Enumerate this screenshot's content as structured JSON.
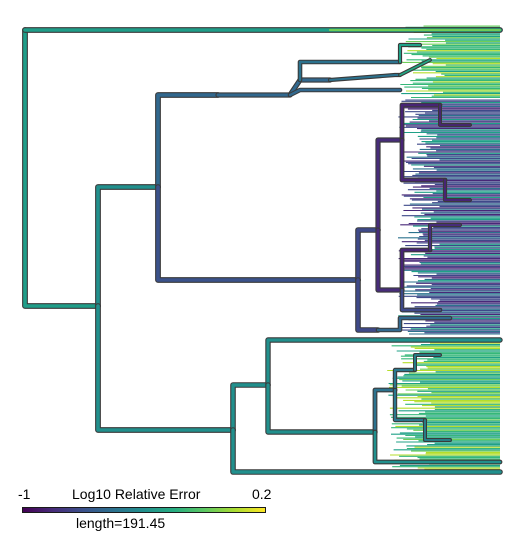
{
  "legend": {
    "min_label": "-1",
    "title": "Log10 Relative Error",
    "max_label": "0.2",
    "min_value": -1,
    "max_value": 0.2,
    "colormap": [
      "#440154",
      "#472c7a",
      "#3b518b",
      "#2c718e",
      "#21908d",
      "#27ad81",
      "#5cc863",
      "#aadc32",
      "#fde725"
    ]
  },
  "scale": {
    "label": "length=191.45"
  },
  "colors": {
    "tip_colors": [
      "#1fa187",
      "#35b779",
      "#6ece58",
      "#b5de2b",
      "#2c728e",
      "#3e4989",
      "#482878"
    ],
    "branch_outline": "#3a3a3a"
  }
}
